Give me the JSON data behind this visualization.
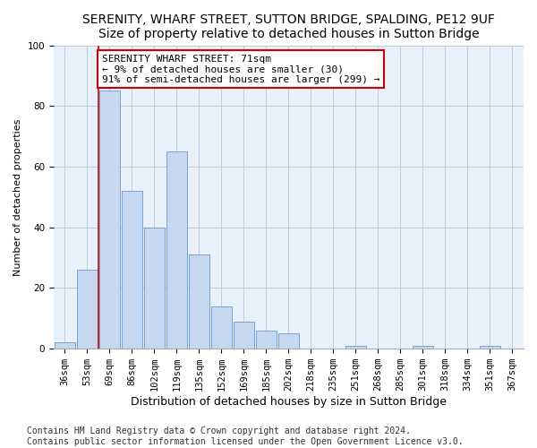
{
  "title": "SERENITY, WHARF STREET, SUTTON BRIDGE, SPALDING, PE12 9UF",
  "subtitle": "Size of property relative to detached houses in Sutton Bridge",
  "xlabel": "Distribution of detached houses by size in Sutton Bridge",
  "ylabel": "Number of detached properties",
  "categories": [
    "36sqm",
    "53sqm",
    "69sqm",
    "86sqm",
    "102sqm",
    "119sqm",
    "135sqm",
    "152sqm",
    "169sqm",
    "185sqm",
    "202sqm",
    "218sqm",
    "235sqm",
    "251sqm",
    "268sqm",
    "285sqm",
    "301sqm",
    "318sqm",
    "334sqm",
    "351sqm",
    "367sqm"
  ],
  "values": [
    2,
    26,
    85,
    52,
    40,
    65,
    31,
    14,
    9,
    6,
    5,
    0,
    0,
    1,
    0,
    0,
    1,
    0,
    0,
    1,
    0
  ],
  "bar_color": "#c5d8f0",
  "bar_edge_color": "#6699cc",
  "grid_color": "#bbccdd",
  "bg_color": "#e8f0fa",
  "annotation_text": "SERENITY WHARF STREET: 71sqm\n← 9% of detached houses are smaller (30)\n91% of semi-detached houses are larger (299) →",
  "annotation_box_color": "#ffffff",
  "annotation_box_edge_color": "#cc0000",
  "vline_color": "#cc0000",
  "vline_x": 1.5,
  "ylim": [
    0,
    100
  ],
  "footer": "Contains HM Land Registry data © Crown copyright and database right 2024.\nContains public sector information licensed under the Open Government Licence v3.0.",
  "title_fontsize": 10,
  "xlabel_fontsize": 9,
  "ylabel_fontsize": 8,
  "tick_fontsize": 7.5,
  "annotation_fontsize": 8,
  "footer_fontsize": 7
}
